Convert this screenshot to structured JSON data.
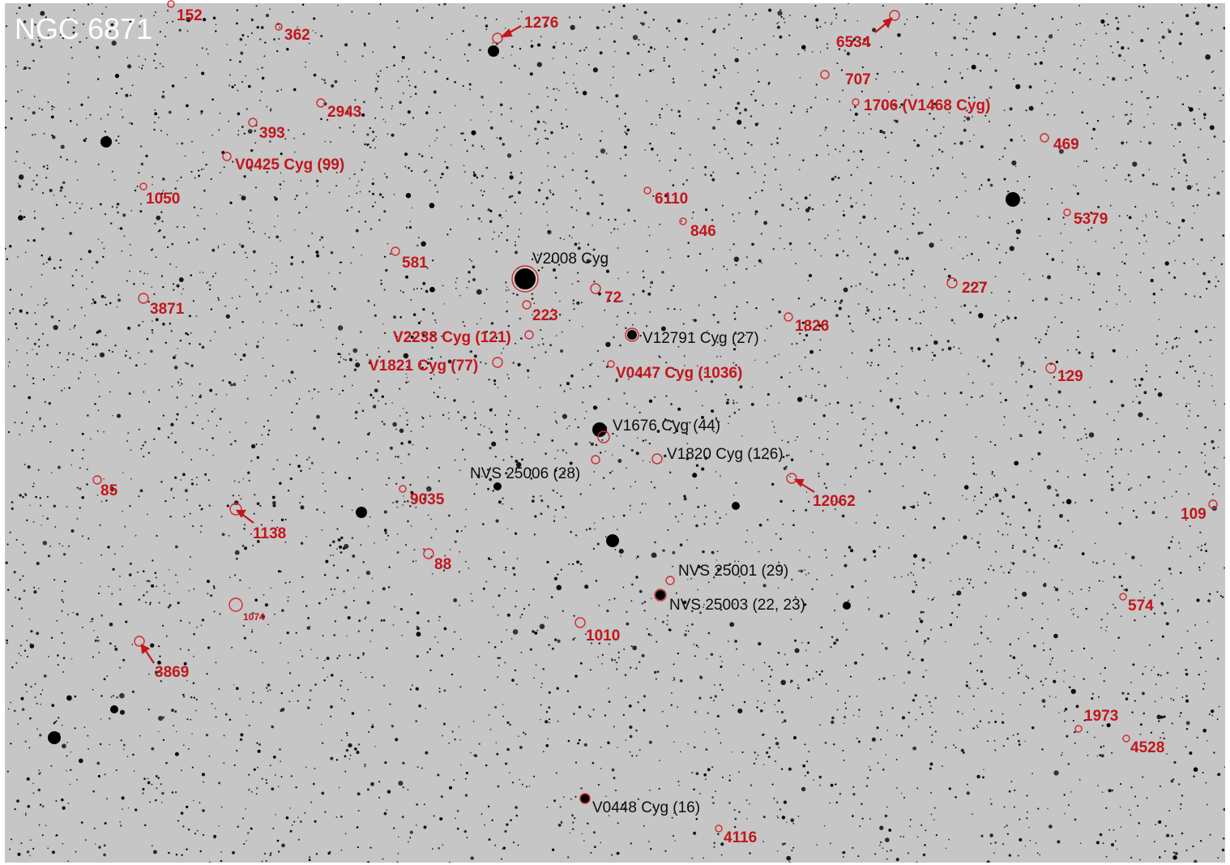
{
  "title": "NGC 6871",
  "colors": {
    "background": "#c6c6c6",
    "star": "#000000",
    "marker": "#d4282c",
    "label_red": "#c4151b",
    "label_black": "#0d0d0d",
    "title": "#ffffff"
  },
  "labels": [
    {
      "id": "152",
      "text": "152",
      "color": "red"
    },
    {
      "id": "362",
      "text": "362",
      "color": "red"
    },
    {
      "id": "1276",
      "text": "1276",
      "color": "red"
    },
    {
      "id": "6534",
      "text": "6534",
      "color": "red"
    },
    {
      "id": "707",
      "text": "707",
      "color": "red"
    },
    {
      "id": "1706",
      "text": "1706 (V1468 Cyg)",
      "color": "red"
    },
    {
      "id": "2943",
      "text": "2943",
      "color": "red"
    },
    {
      "id": "393",
      "text": "393",
      "color": "red"
    },
    {
      "id": "v0425",
      "text": "V0425 Cyg (99)",
      "color": "red"
    },
    {
      "id": "469",
      "text": "469",
      "color": "red"
    },
    {
      "id": "1050",
      "text": "1050",
      "color": "red"
    },
    {
      "id": "6110",
      "text": "6110",
      "color": "red"
    },
    {
      "id": "5379",
      "text": "5379",
      "color": "red"
    },
    {
      "id": "846",
      "text": "846",
      "color": "red"
    },
    {
      "id": "581",
      "text": "581",
      "color": "red"
    },
    {
      "id": "v2008",
      "text": "V2008 Cyg",
      "color": "black"
    },
    {
      "id": "72",
      "text": "72",
      "color": "red"
    },
    {
      "id": "227",
      "text": "227",
      "color": "red"
    },
    {
      "id": "3871",
      "text": "3871",
      "color": "red"
    },
    {
      "id": "223",
      "text": "223",
      "color": "red"
    },
    {
      "id": "1826",
      "text": "1826",
      "color": "red"
    },
    {
      "id": "v2238",
      "text": "V2238 Cyg (121)",
      "color": "red"
    },
    {
      "id": "v12791",
      "text": "V12791 Cyg (27)",
      "color": "black"
    },
    {
      "id": "v1821",
      "text": "V1821 Cyg (77)",
      "color": "red"
    },
    {
      "id": "v0447",
      "text": "V0447 Cyg (1036)",
      "color": "red"
    },
    {
      "id": "129",
      "text": "129",
      "color": "red"
    },
    {
      "id": "v1676",
      "text": "V1676 Cyg (44)",
      "color": "black"
    },
    {
      "id": "v1820",
      "text": "V1820 Cyg (126)",
      "color": "black"
    },
    {
      "id": "nvs25006",
      "text": "NVS 25006 (28)",
      "color": "black"
    },
    {
      "id": "85",
      "text": "85",
      "color": "red"
    },
    {
      "id": "9035",
      "text": "9035",
      "color": "red"
    },
    {
      "id": "12062",
      "text": "12062",
      "color": "red"
    },
    {
      "id": "109",
      "text": "109",
      "color": "red"
    },
    {
      "id": "1138",
      "text": "1138",
      "color": "red"
    },
    {
      "id": "88",
      "text": "88",
      "color": "red"
    },
    {
      "id": "nvs25001",
      "text": "NVS 25001 (29)",
      "color": "black"
    },
    {
      "id": "nvs25003",
      "text": "NVS 25003 (22, 23)",
      "color": "black"
    },
    {
      "id": "1074",
      "text": "1074",
      "color": "red"
    },
    {
      "id": "574",
      "text": "574",
      "color": "red"
    },
    {
      "id": "1010",
      "text": "1010",
      "color": "red"
    },
    {
      "id": "3869",
      "text": "3869",
      "color": "red"
    },
    {
      "id": "1973",
      "text": "1973",
      "color": "red"
    },
    {
      "id": "4528",
      "text": "4528",
      "color": "red"
    },
    {
      "id": "v0448",
      "text": "V0448 Cyg (16)",
      "color": "black"
    },
    {
      "id": "4116",
      "text": "4116",
      "color": "red"
    }
  ]
}
